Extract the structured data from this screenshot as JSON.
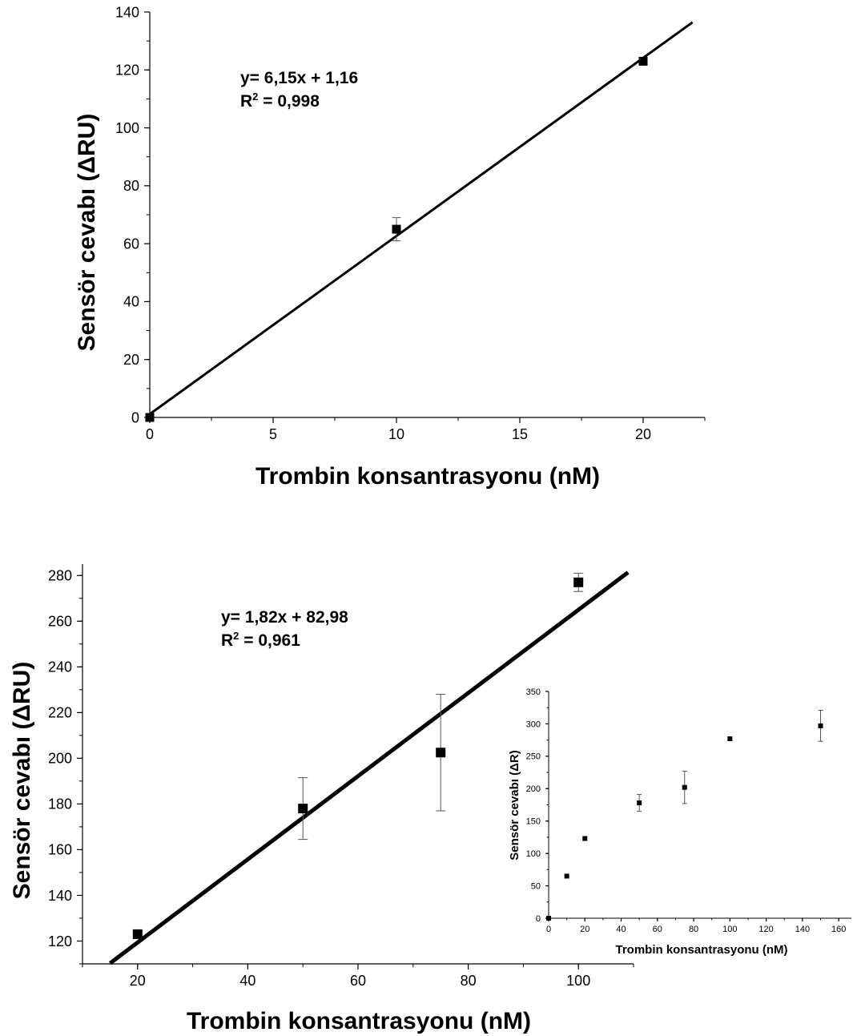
{
  "chart_data": [
    {
      "id": "top",
      "type": "scatter",
      "xlabel": "Trombin konsantrasyonu (nM)",
      "ylabel": "Sensör cevabı (ΔRU)",
      "xlim": [
        0,
        22.5
      ],
      "ylim": [
        0,
        140
      ],
      "xticks": [
        0,
        5,
        10,
        15,
        20
      ],
      "yticks": [
        0,
        20,
        40,
        60,
        80,
        100,
        120,
        140
      ],
      "points": [
        {
          "x": 0,
          "y": 0,
          "err": 0
        },
        {
          "x": 10,
          "y": 65,
          "err": 4
        },
        {
          "x": 20,
          "y": 123,
          "err": 1
        }
      ],
      "fit": {
        "slope": 6.15,
        "intercept": 1.16,
        "x_range": [
          0,
          22.0
        ]
      },
      "equation": "y= 6,15x + 1,16",
      "r2_label": "R",
      "r2_sup": "2",
      "r2_value": " = 0,998"
    },
    {
      "id": "bottom",
      "type": "scatter",
      "xlabel": "Trombin konsantrasyonu (nM)",
      "ylabel": "Sensör cevabı (ΔRU)",
      "xlim": [
        10,
        110
      ],
      "ylim": [
        110,
        285
      ],
      "xticks": [
        20,
        40,
        60,
        80,
        100
      ],
      "yticks": [
        120,
        140,
        160,
        180,
        200,
        220,
        240,
        260,
        280
      ],
      "points": [
        {
          "x": 20,
          "y": 123,
          "err": 1
        },
        {
          "x": 50,
          "y": 178,
          "err": 13.5
        },
        {
          "x": 75,
          "y": 202.5,
          "err": 25.5
        },
        {
          "x": 100,
          "y": 277,
          "err": 4
        }
      ],
      "fit": {
        "slope": 1.82,
        "intercept": 82.98,
        "x_range": [
          15,
          109
        ]
      },
      "equation": "y= 1,82x + 82,98",
      "r2_label": "R",
      "r2_sup": "2",
      "r2_value": " = 0,961"
    },
    {
      "id": "inset",
      "type": "scatter",
      "xlabel": "Trombin konsantrasyonu (nM)",
      "ylabel": "Sensör cevabı (ΔR)",
      "xlim": [
        0,
        167
      ],
      "ylim": [
        0,
        350
      ],
      "xticks": [
        0,
        20,
        40,
        60,
        80,
        100,
        120,
        140,
        160
      ],
      "yticks": [
        0,
        50,
        100,
        150,
        200,
        250,
        300,
        350
      ],
      "points": [
        {
          "x": 0,
          "y": 0,
          "err": 0
        },
        {
          "x": 10,
          "y": 65,
          "err": 0
        },
        {
          "x": 20,
          "y": 123,
          "err": 0
        },
        {
          "x": 50,
          "y": 178,
          "err": 13
        },
        {
          "x": 75,
          "y": 202,
          "err": 25
        },
        {
          "x": 100,
          "y": 277,
          "err": 0
        },
        {
          "x": 150,
          "y": 297,
          "err": 24
        }
      ]
    }
  ]
}
